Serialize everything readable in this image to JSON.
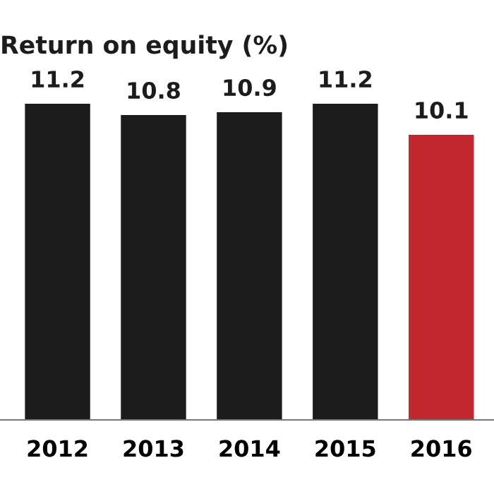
{
  "chart_data": {
    "type": "bar",
    "title": "Return on equity (%)",
    "categories": [
      "2012",
      "2013",
      "2014",
      "2015",
      "2016"
    ],
    "values": [
      11.2,
      10.8,
      10.9,
      11.2,
      10.1
    ],
    "colors": [
      "#1c1c1c",
      "#1c1c1c",
      "#1c1c1c",
      "#1c1c1c",
      "#c1272d"
    ],
    "data_labels": true,
    "grid": false,
    "legend": false
  }
}
